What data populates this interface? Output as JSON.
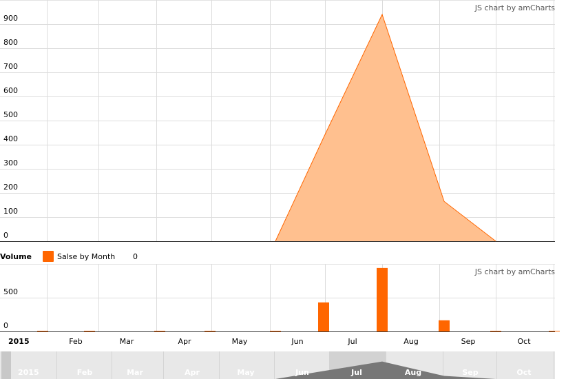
{
  "chart_data": [
    {
      "type": "area",
      "credit": "JS chart by amCharts",
      "y_ticks": [
        0,
        100,
        200,
        300,
        400,
        500,
        600,
        700,
        800,
        900
      ],
      "ylim": [
        0,
        1000
      ],
      "grid": true,
      "x": [
        "2015-01",
        "2015-02",
        "2015-03",
        "2015-04",
        "2015-05",
        "2015-06",
        "2015-07",
        "2015-08",
        "2015-09",
        "2015-10"
      ],
      "series": [
        {
          "name": "",
          "values": [
            0,
            0,
            0,
            0,
            0,
            430,
            940,
            165,
            0,
            0
          ]
        }
      ],
      "color": "#FF6600",
      "fill": "#FFC08F"
    },
    {
      "type": "bar",
      "credit": "JS chart by amCharts",
      "y_ticks": [
        0,
        500
      ],
      "ylim": [
        0,
        1000
      ],
      "grid": true,
      "x": [
        "2015-01",
        "2015-02",
        "2015-03",
        "2015-04",
        "2015-05",
        "2015-06",
        "2015-07",
        "2015-08",
        "2015-09",
        "2015-10"
      ],
      "series": [
        {
          "name": "Salse by Month",
          "values": [
            0,
            0,
            0,
            0,
            0,
            430,
            940,
            165,
            0,
            0
          ]
        }
      ],
      "color": "#FF6600"
    }
  ],
  "legend": {
    "title": "Volume",
    "series_label": "Salse by Month",
    "value": "0",
    "swatch_color": "#FF6600"
  },
  "x_axis": {
    "year": "2015",
    "month_labels": [
      "Feb",
      "Mar",
      "Apr",
      "May",
      "Jun",
      "Jul",
      "Aug",
      "Sep",
      "Oct"
    ]
  },
  "scrollbar": {
    "year": "2015",
    "month_labels": [
      "Feb",
      "Mar",
      "Apr",
      "May",
      "Jun",
      "Jul",
      "Aug",
      "Sep",
      "Oct"
    ]
  }
}
